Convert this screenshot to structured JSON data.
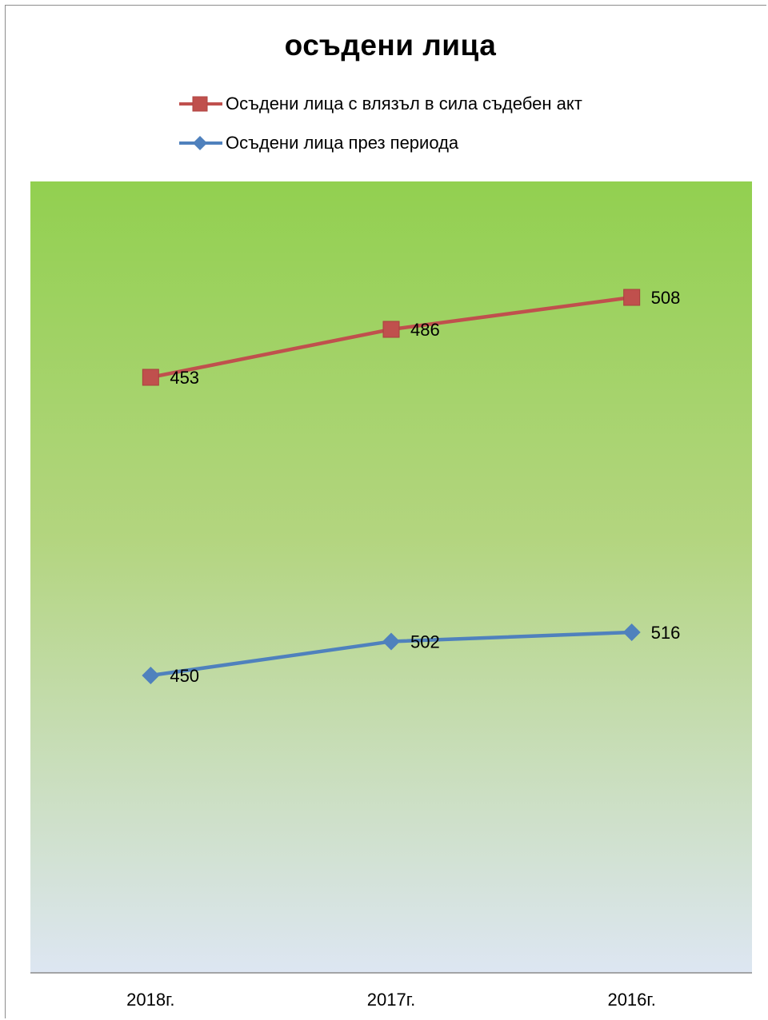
{
  "chart_data": {
    "type": "line",
    "title": "осъдени лица",
    "xlabel": "",
    "ylabel": "",
    "categories": [
      "2018г.",
      "2017г.",
      "2016г."
    ],
    "series": [
      {
        "name": "Осъдени лица с влязъл в сила съдебен акт",
        "values": [
          453,
          486,
          508
        ],
        "color": "#c0504d",
        "marker": "square"
      },
      {
        "name": "Осъдени лица през периода",
        "values": [
          450,
          502,
          516
        ],
        "color": "#4f81bd",
        "marker": "diamond"
      }
    ],
    "legend_position": "top",
    "grid": false,
    "plot_background": "green-to-light-blue gradient"
  }
}
